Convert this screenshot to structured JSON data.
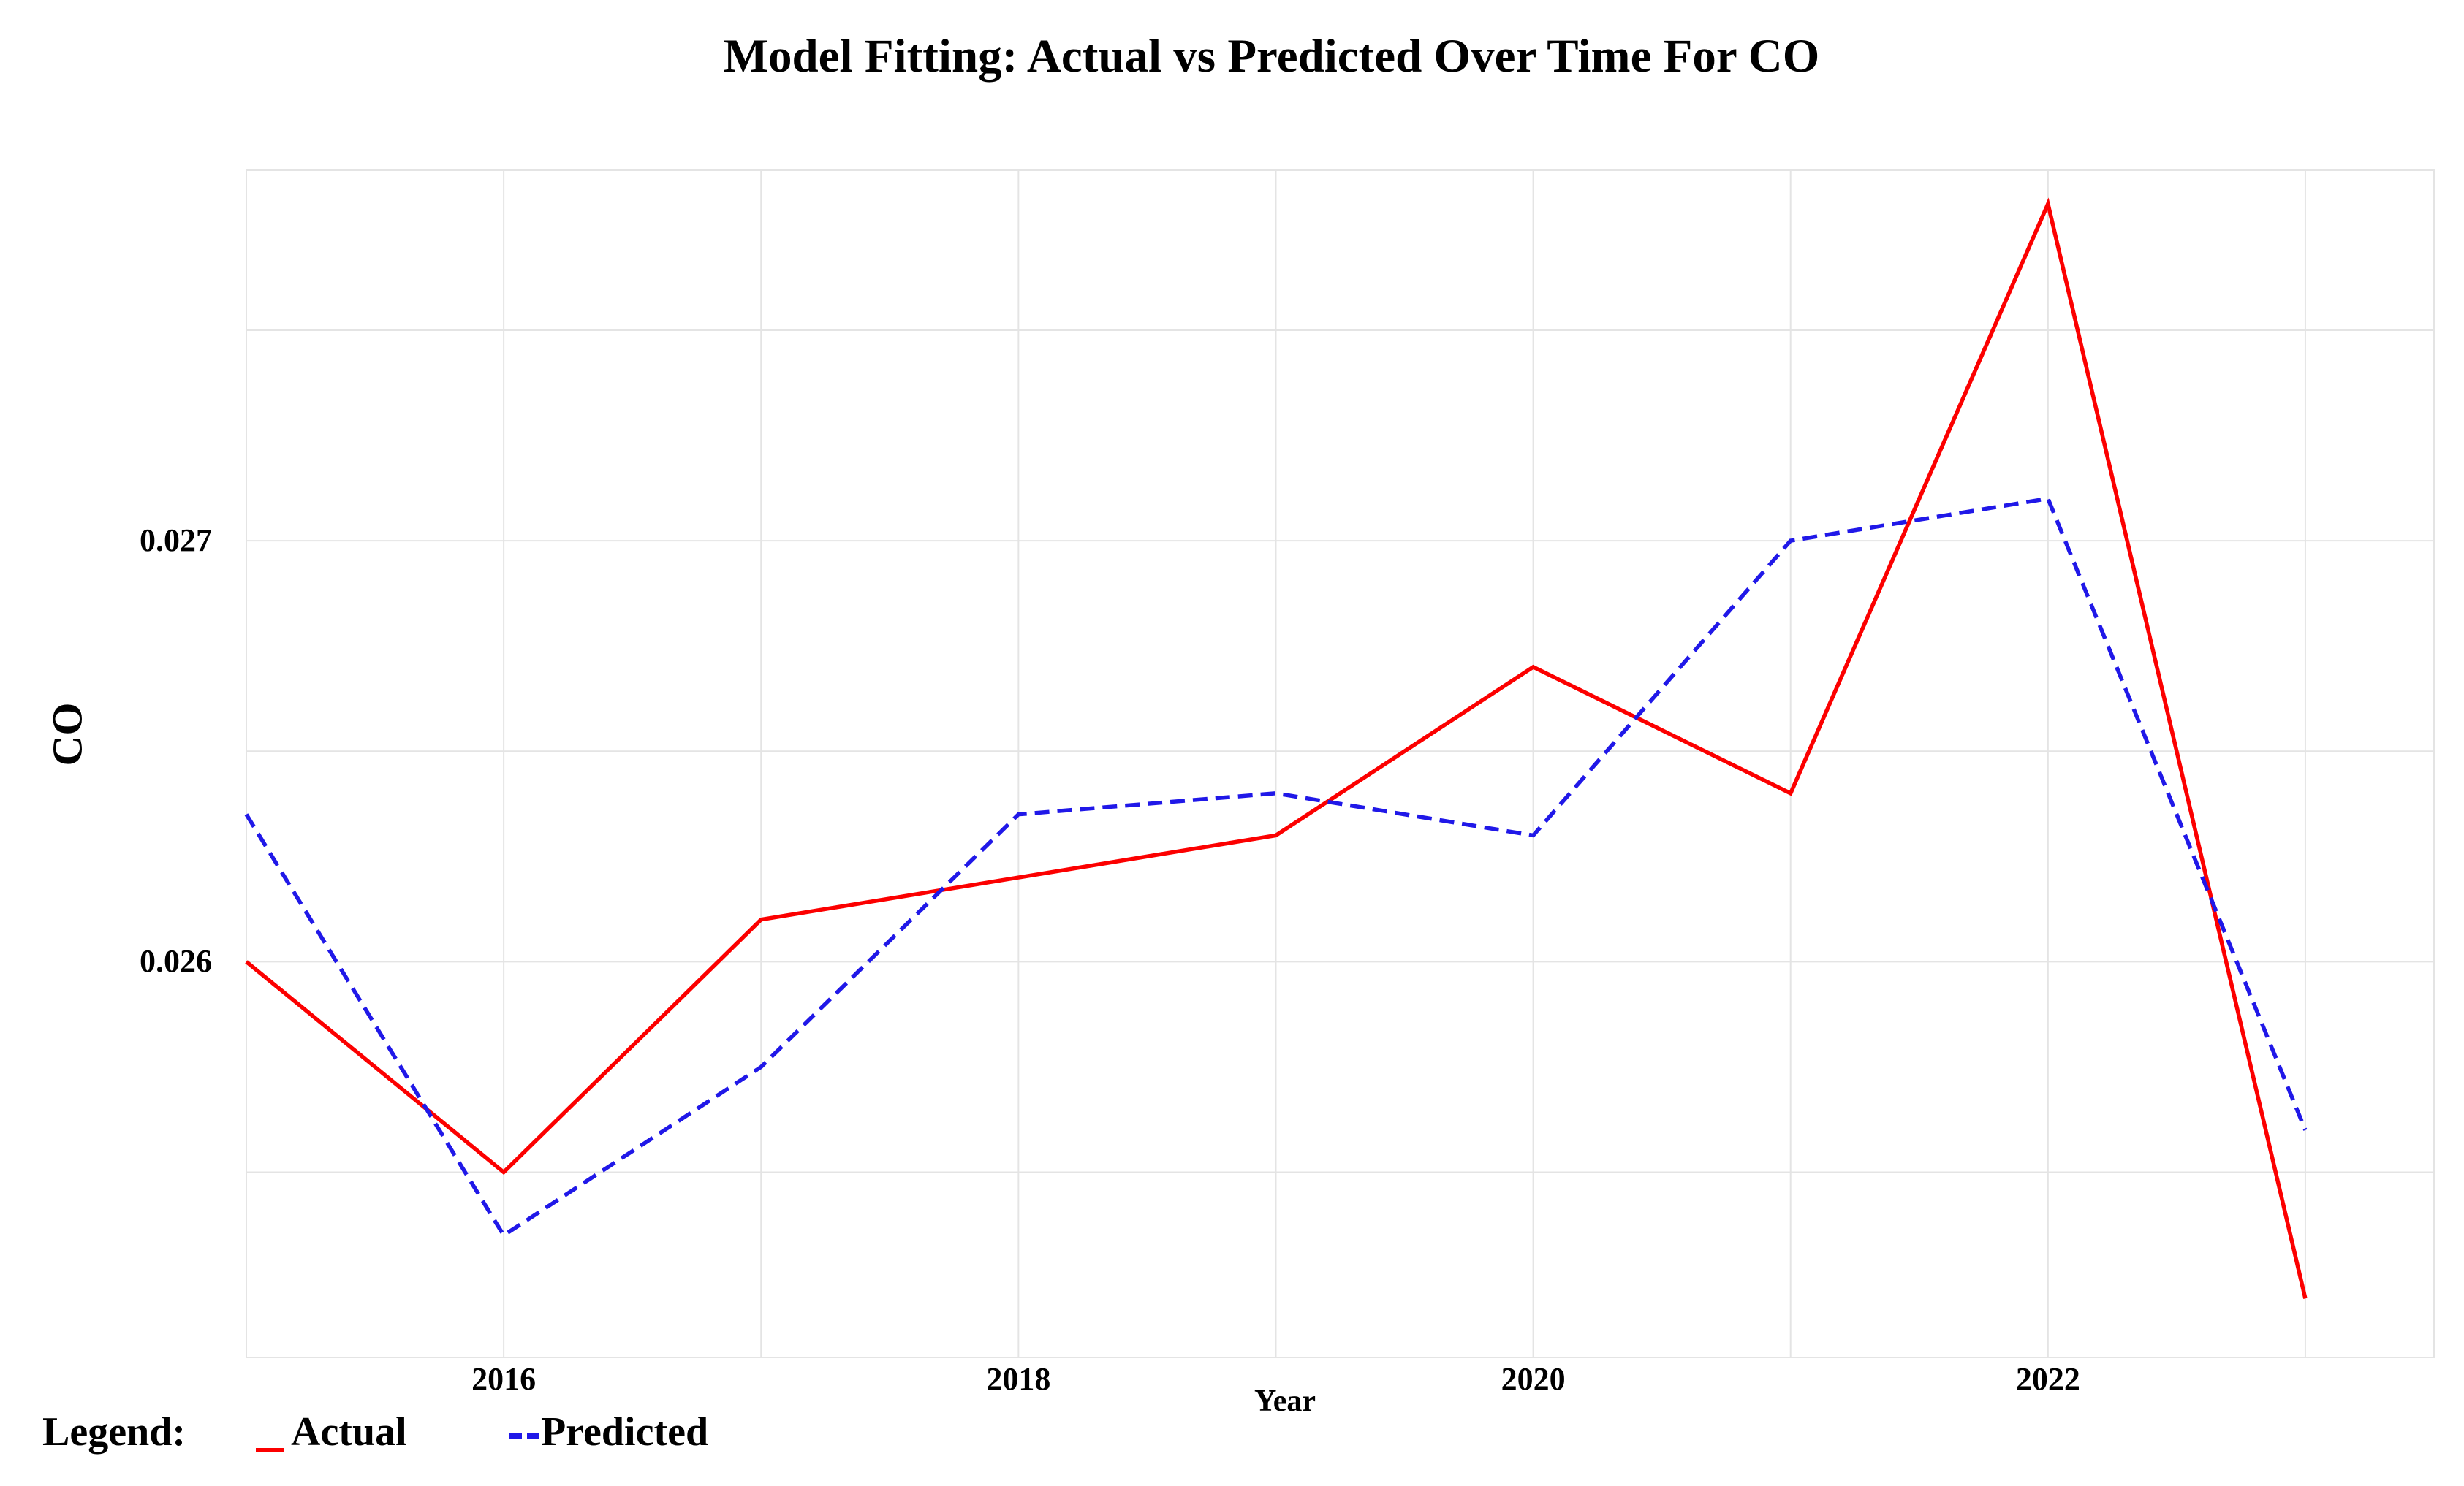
{
  "title": "Model Fitting: Actual vs Predicted Over Time For CO",
  "x_axis": {
    "label": "Year",
    "ticks": [
      {
        "value": 2016,
        "label": "2016"
      },
      {
        "value": 2018,
        "label": "2018"
      },
      {
        "value": 2020,
        "label": "2020"
      },
      {
        "value": 2022,
        "label": "2022"
      }
    ]
  },
  "y_axis": {
    "label": "CO",
    "ticks": [
      {
        "value": 0.027,
        "label": "0.027"
      },
      {
        "value": 0.026,
        "label": "0.026"
      }
    ]
  },
  "legend": {
    "prefix": "Legend:"
  },
  "colors": {
    "actual": "#fc0000",
    "predicted": "#2018e8",
    "gridline": "#e4e4e4",
    "text": "#000000",
    "background": "#ffffff"
  },
  "chart_data": {
    "type": "line",
    "title": "Model Fitting: Actual vs Predicted Over Time For CO",
    "xlabel": "Year",
    "ylabel": "CO",
    "x": [
      2015,
      2016,
      2017,
      2018,
      2019,
      2020,
      2021,
      2022,
      2023
    ],
    "series": [
      {
        "name": "Actual",
        "style": "solid",
        "color": "#fc0000",
        "values": [
          0.026,
          0.0255,
          0.0261,
          0.0262,
          0.0263,
          0.0267,
          0.0264,
          0.0278,
          0.0252
        ]
      },
      {
        "name": "Predicted",
        "style": "dashed",
        "color": "#2018e8",
        "values": [
          0.02635,
          0.02535,
          0.02575,
          0.02635,
          0.0264,
          0.0263,
          0.027,
          0.0271,
          0.0256
        ]
      }
    ],
    "xlim": [
      2015,
      2023.5
    ],
    "ylim": [
      0.02506,
      0.02788
    ],
    "x_gridlines": [
      2015,
      2016,
      2017,
      2018,
      2019,
      2020,
      2021,
      2022,
      2023
    ],
    "y_gridlines": [
      0.0255,
      0.026,
      0.0265,
      0.027,
      0.0275
    ],
    "grid": true,
    "legend_position": "bottom-left"
  }
}
